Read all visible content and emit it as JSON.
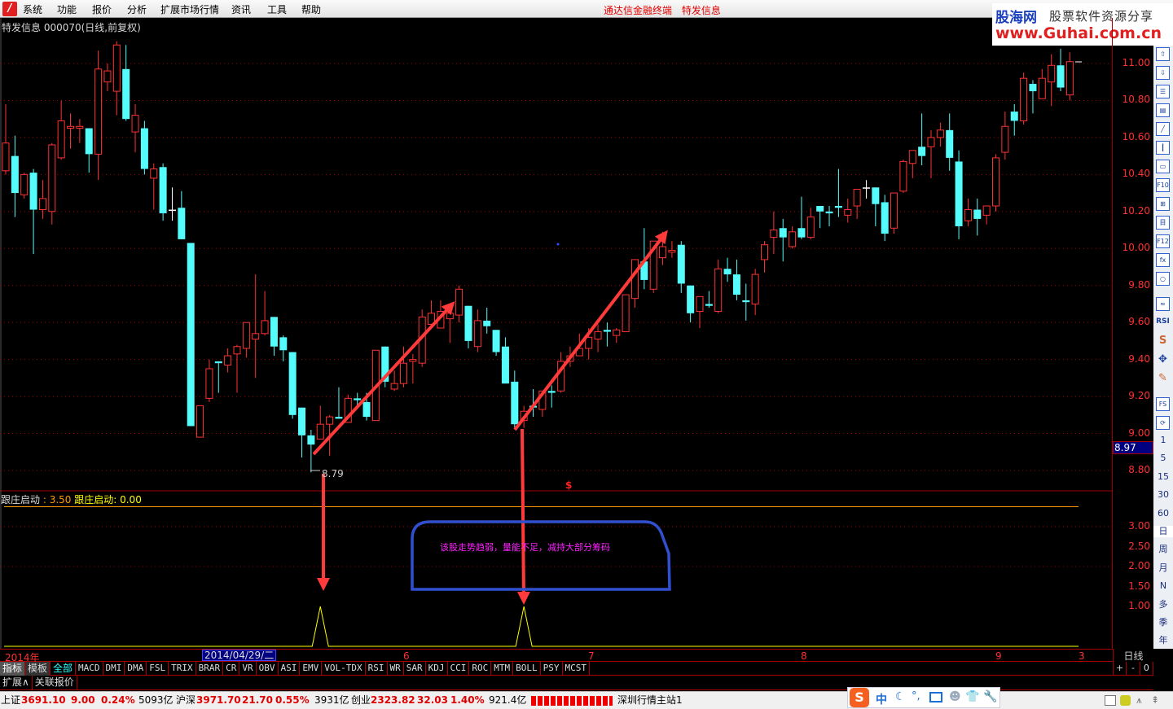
{
  "menu": {
    "items": [
      "系统",
      "功能",
      "报价",
      "分析",
      "扩展市场行情",
      "资讯",
      "工具",
      "帮助"
    ],
    "center_title": "通达信金融终端  特发信息"
  },
  "watermark": {
    "brand": "股海网",
    "slogan": "股票软件资源分享",
    "url": "www.Guhai.com.cn"
  },
  "stock": {
    "title": "特发信息 000070(日线,前复权)"
  },
  "colors": {
    "up": "#ff3232",
    "down": "#54fcfc",
    "doji": "#ffffff",
    "axis": "#ff3030",
    "grid": "#a00000",
    "annotation_arrow": "#ff3a3a",
    "annotation_box": "#3050d0",
    "annotation_text": "#ff20ff",
    "indicator_line1": "#ff9900",
    "indicator_line2": "#ffff00"
  },
  "chart_data": [
    {
      "type": "candlestick",
      "ylim": [
        8.7,
        11.15
      ],
      "yticks": [
        "11.00",
        "10.80",
        "10.60",
        "10.40",
        "10.20",
        "10.00",
        "9.80",
        "9.60",
        "9.40",
        "9.20",
        "9.00",
        "8.80"
      ],
      "current_price": "8.97",
      "low_marker": "8.79",
      "candles": [
        [
          10.42,
          10.78,
          10.4,
          10.57
        ],
        [
          10.5,
          10.61,
          10.17,
          10.3
        ],
        [
          10.29,
          10.41,
          10.27,
          10.4
        ],
        [
          10.41,
          10.43,
          9.97,
          10.21
        ],
        [
          10.21,
          10.37,
          10.16,
          10.27
        ],
        [
          10.2,
          10.57,
          10.13,
          10.56
        ],
        [
          10.49,
          10.8,
          10.48,
          10.69
        ],
        [
          10.65,
          10.73,
          10.54,
          10.66
        ],
        [
          10.65,
          10.7,
          10.57,
          10.66
        ],
        [
          10.65,
          10.65,
          10.41,
          10.51
        ],
        [
          10.51,
          11.07,
          10.37,
          10.97
        ],
        [
          10.9,
          11.0,
          10.85,
          10.96
        ],
        [
          10.85,
          11.12,
          10.72,
          11.1
        ],
        [
          10.97,
          11.1,
          10.69,
          10.7
        ],
        [
          10.63,
          10.78,
          10.52,
          10.72
        ],
        [
          10.65,
          10.69,
          10.4,
          10.43
        ],
        [
          10.38,
          10.46,
          10.21,
          10.43
        ],
        [
          10.44,
          10.46,
          10.15,
          10.19
        ],
        [
          10.21,
          10.33,
          10.15,
          10.21
        ],
        [
          10.22,
          10.31,
          10.05,
          10.05
        ],
        [
          10.03,
          10.03,
          9.04,
          9.04
        ],
        [
          8.98,
          9.15,
          8.98,
          9.15
        ],
        [
          9.19,
          9.4,
          9.17,
          9.35
        ],
        [
          9.39,
          9.39,
          9.22,
          9.38
        ],
        [
          9.37,
          9.46,
          9.33,
          9.42
        ],
        [
          9.43,
          9.48,
          9.22,
          9.47
        ],
        [
          9.46,
          9.6,
          9.41,
          9.6
        ],
        [
          9.51,
          9.86,
          9.3,
          9.54
        ],
        [
          9.54,
          9.77,
          9.53,
          9.61
        ],
        [
          9.63,
          9.63,
          9.42,
          9.47
        ],
        [
          9.52,
          9.53,
          9.39,
          9.45
        ],
        [
          9.44,
          9.44,
          9.08,
          9.1
        ],
        [
          9.14,
          9.14,
          8.87,
          8.99
        ],
        [
          8.99,
          9.02,
          8.79,
          8.94
        ],
        [
          8.97,
          9.15,
          8.97,
          9.05
        ],
        [
          9.05,
          9.1,
          8.88,
          9.09
        ],
        [
          9.09,
          9.25,
          9.08,
          9.08
        ],
        [
          9.06,
          9.21,
          9.06,
          9.19
        ],
        [
          9.19,
          9.22,
          9.15,
          9.18
        ],
        [
          9.17,
          9.22,
          9.07,
          9.09
        ],
        [
          9.07,
          9.45,
          9.07,
          9.45
        ],
        [
          9.47,
          9.47,
          9.25,
          9.28
        ],
        [
          9.24,
          9.34,
          9.23,
          9.27
        ],
        [
          9.27,
          9.47,
          9.25,
          9.38
        ],
        [
          9.39,
          9.43,
          9.27,
          9.4
        ],
        [
          9.38,
          9.67,
          9.36,
          9.63
        ],
        [
          9.59,
          9.72,
          9.59,
          9.65
        ],
        [
          9.57,
          9.72,
          9.57,
          9.66
        ],
        [
          9.62,
          9.7,
          9.49,
          9.65
        ],
        [
          9.64,
          9.8,
          9.6,
          9.78
        ],
        [
          9.69,
          9.69,
          9.46,
          9.5
        ],
        [
          9.47,
          9.67,
          9.44,
          9.61
        ],
        [
          9.61,
          9.68,
          9.54,
          9.58
        ],
        [
          9.56,
          9.56,
          9.42,
          9.44
        ],
        [
          9.47,
          9.52,
          9.27,
          9.27
        ],
        [
          9.28,
          9.34,
          9.03,
          9.05
        ],
        [
          9.07,
          9.15,
          9.03,
          9.12
        ],
        [
          9.15,
          9.24,
          9.09,
          9.14
        ],
        [
          9.13,
          9.23,
          9.09,
          9.23
        ],
        [
          9.23,
          9.26,
          9.14,
          9.22
        ],
        [
          9.23,
          9.44,
          9.22,
          9.39
        ],
        [
          9.39,
          9.47,
          9.36,
          9.42
        ],
        [
          9.42,
          9.54,
          9.42,
          9.46
        ],
        [
          9.46,
          9.57,
          9.4,
          9.52
        ],
        [
          9.51,
          9.59,
          9.44,
          9.55
        ],
        [
          9.56,
          9.6,
          9.47,
          9.55
        ],
        [
          9.53,
          9.57,
          9.49,
          9.56
        ],
        [
          9.55,
          9.75,
          9.55,
          9.75
        ],
        [
          9.73,
          9.94,
          9.68,
          9.94
        ],
        [
          9.93,
          10.11,
          9.78,
          9.83
        ],
        [
          9.78,
          10.04,
          9.76,
          10.04
        ],
        [
          9.95,
          10.09,
          9.91,
          10.01
        ],
        [
          9.98,
          10.04,
          9.95,
          9.99
        ],
        [
          10.02,
          10.04,
          9.76,
          9.81
        ],
        [
          9.8,
          9.8,
          9.6,
          9.65
        ],
        [
          9.66,
          9.74,
          9.57,
          9.74
        ],
        [
          9.7,
          9.77,
          9.68,
          9.69
        ],
        [
          9.66,
          9.94,
          9.65,
          9.89
        ],
        [
          9.89,
          9.95,
          9.82,
          9.86
        ],
        [
          9.86,
          9.94,
          9.72,
          9.75
        ],
        [
          9.72,
          9.81,
          9.61,
          9.71
        ],
        [
          9.7,
          9.89,
          9.64,
          9.86
        ],
        [
          9.94,
          10.04,
          9.87,
          10.02
        ],
        [
          10.06,
          10.2,
          9.97,
          10.1
        ],
        [
          10.11,
          10.16,
          9.93,
          10.06
        ],
        [
          10.01,
          10.12,
          10.0,
          10.09
        ],
        [
          10.11,
          10.28,
          10.05,
          10.06
        ],
        [
          10.06,
          10.22,
          10.05,
          10.17
        ],
        [
          10.23,
          10.23,
          10.11,
          10.2
        ],
        [
          10.2,
          10.23,
          10.12,
          10.19
        ],
        [
          10.23,
          10.43,
          10.17,
          10.22
        ],
        [
          10.18,
          10.27,
          10.14,
          10.21
        ],
        [
          10.23,
          10.32,
          10.16,
          10.32
        ],
        [
          10.33,
          10.37,
          10.27,
          10.33
        ],
        [
          10.33,
          10.33,
          10.12,
          10.24
        ],
        [
          10.25,
          10.29,
          10.04,
          10.08
        ],
        [
          10.11,
          10.3,
          10.08,
          10.3
        ],
        [
          10.31,
          10.48,
          10.3,
          10.47
        ],
        [
          10.46,
          10.53,
          10.38,
          10.53
        ],
        [
          10.55,
          10.73,
          10.45,
          10.5
        ],
        [
          10.55,
          10.64,
          10.38,
          10.6
        ],
        [
          10.6,
          10.68,
          10.55,
          10.64
        ],
        [
          10.64,
          10.73,
          10.42,
          10.49
        ],
        [
          10.47,
          10.53,
          10.05,
          10.12
        ],
        [
          10.15,
          10.27,
          10.12,
          10.21
        ],
        [
          10.21,
          10.27,
          10.07,
          10.16
        ],
        [
          10.18,
          10.23,
          10.13,
          10.23
        ],
        [
          10.23,
          10.51,
          10.2,
          10.49
        ],
        [
          10.52,
          10.74,
          10.48,
          10.66
        ],
        [
          10.74,
          10.78,
          10.61,
          10.69
        ],
        [
          10.69,
          10.95,
          10.67,
          10.92
        ],
        [
          10.89,
          10.91,
          10.73,
          10.85
        ],
        [
          10.81,
          10.97,
          10.81,
          10.92
        ],
        [
          10.9,
          11.05,
          10.77,
          10.99
        ],
        [
          10.99,
          11.08,
          10.85,
          10.87
        ],
        [
          10.83,
          11.06,
          10.8,
          11.01
        ]
      ]
    },
    {
      "type": "line",
      "title": "跟庄启动",
      "ylim": [
        0,
        3.5
      ],
      "yticks": [
        "3.00",
        "2.50",
        "2.00",
        "1.50",
        "1.00"
      ],
      "series": [
        {
          "name": "跟庄启动",
          "value_label": "3.50",
          "constant": 3.5
        },
        {
          "name": "跟庄启动",
          "value_label": "0.00",
          "signal_candle_indices": [
            34,
            56
          ]
        }
      ]
    }
  ],
  "indicator": {
    "name1": "跟庄启动",
    "sep1": " : ",
    "value1": "3.50",
    "name2": "跟庄启动",
    "sep2": ": ",
    "value2": "0.00"
  },
  "annotation": {
    "text": "该股走势趋弱，量能不足，减持大部分筹码",
    "dollar": "$"
  },
  "date_axis": {
    "year": "2014年",
    "selected": "2014/04/29/二",
    "months": [
      "6",
      "7",
      "8",
      "9",
      "3"
    ],
    "period": "日线"
  },
  "toolbar": {
    "icons": [
      "up-arrow-icon",
      "down-arrow-icon",
      "list-report-icon",
      "table-icon",
      "line-chart-icon",
      "candle-chart-icon",
      "window-icon",
      "f10-icon",
      "tree-icon",
      "notes-icon",
      "f12-icon",
      "formula-icon",
      "circle-icon",
      "wave-icon",
      "rsi-icon",
      "stock-s-icon",
      "move-icon",
      "pencil-icon",
      "fs-icon",
      "refresh-icon"
    ],
    "periods": [
      "1",
      "5",
      "15",
      "30",
      "60",
      "日",
      "周",
      "月",
      "N",
      "多",
      "季",
      "年"
    ],
    "rsi": "RSI",
    "f10": "F10",
    "f12": "F12",
    "fs": "FS"
  },
  "tabs": {
    "items": [
      "指标",
      "模板",
      "全部",
      "MACD",
      "DMI",
      "DMA",
      "FSL",
      "TRIX",
      "BRAR",
      "CR",
      "VR",
      "OBV",
      "ASI",
      "EMV",
      "VOL-TDX",
      "RSI",
      "WR",
      "SAR",
      "KDJ",
      "CCI",
      "ROC",
      "MTM",
      "BOLL",
      "PSY",
      "MCST"
    ],
    "zoom": [
      "+",
      "-",
      "0"
    ],
    "row2": [
      "扩展∧",
      "关联报价"
    ]
  },
  "status": {
    "sh_label": "上证",
    "sh_price": "3691.10",
    "sh_change": "9.00",
    "sh_pct": "0.24%",
    "sh_amount": "5093亿",
    "hs_label": "沪深",
    "hs_price": "3971.70",
    "hs_change": "21.70",
    "hs_pct": "0.55%",
    "hs_amount": "3931亿",
    "cy_label": "创业",
    "cy_price": "2323.82",
    "cy_change": "32.03",
    "cy_pct": "1.40%",
    "cy_amount": "921.4亿",
    "server": "深圳行情主站1",
    "ime_mode": "中"
  }
}
